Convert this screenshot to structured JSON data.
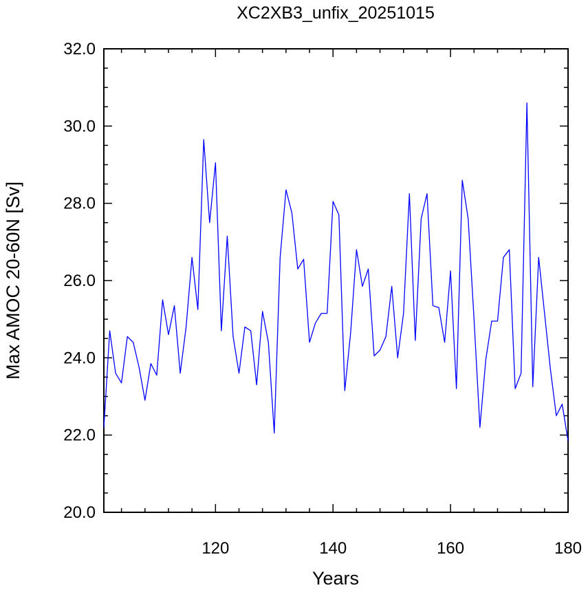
{
  "chart_data": {
    "type": "line",
    "title": "XC2XB3_unfix_20251015",
    "xlabel": "Years",
    "ylabel": "Max AMOC 20-60N [Sv]",
    "xlim": [
      101,
      180
    ],
    "ylim": [
      20.0,
      32.0
    ],
    "x_ticks": [
      120,
      140,
      160,
      180
    ],
    "y_ticks": [
      "20.0",
      "22.0",
      "24.0",
      "26.0",
      "28.0",
      "30.0",
      "32.0"
    ],
    "grid": false,
    "line_color": "#0000ff",
    "series": [
      {
        "x": [
          101,
          102,
          103,
          104,
          105,
          106,
          107,
          108,
          109,
          110,
          111,
          112,
          113,
          114,
          115,
          116,
          117,
          118,
          119,
          120,
          121,
          122,
          123,
          124,
          125,
          126,
          127,
          128,
          129,
          130,
          131,
          132,
          133,
          134,
          135,
          136,
          137,
          138,
          139,
          140,
          141,
          142,
          143,
          144,
          145,
          146,
          147,
          148,
          149,
          150,
          151,
          152,
          153,
          154,
          155,
          156,
          157,
          158,
          159,
          160,
          161,
          162,
          163,
          164,
          165,
          166,
          167,
          168,
          169,
          170,
          171,
          172,
          173,
          174,
          175,
          176,
          177,
          178,
          179,
          180
        ],
        "values": [
          22.2,
          24.7,
          23.6,
          23.35,
          24.55,
          24.4,
          23.75,
          22.9,
          23.85,
          23.55,
          25.5,
          24.6,
          25.35,
          23.6,
          24.8,
          26.6,
          25.25,
          29.65,
          27.5,
          29.05,
          24.7,
          27.15,
          24.55,
          23.6,
          24.8,
          24.7,
          23.3,
          25.2,
          24.4,
          22.05,
          26.6,
          28.35,
          27.75,
          26.3,
          26.55,
          24.4,
          24.9,
          25.15,
          25.15,
          28.05,
          27.7,
          23.15,
          24.65,
          26.8,
          25.85,
          26.3,
          24.05,
          24.2,
          24.55,
          25.85,
          24.0,
          25.15,
          28.25,
          24.45,
          27.6,
          28.25,
          25.35,
          25.3,
          24.4,
          26.25,
          23.2,
          28.6,
          27.6,
          25.0,
          22.2,
          23.95,
          24.95,
          24.95,
          26.6,
          26.8,
          23.2,
          23.6,
          30.6,
          23.25,
          26.6,
          25.15,
          23.7,
          22.5,
          22.8,
          21.85
        ]
      }
    ]
  }
}
